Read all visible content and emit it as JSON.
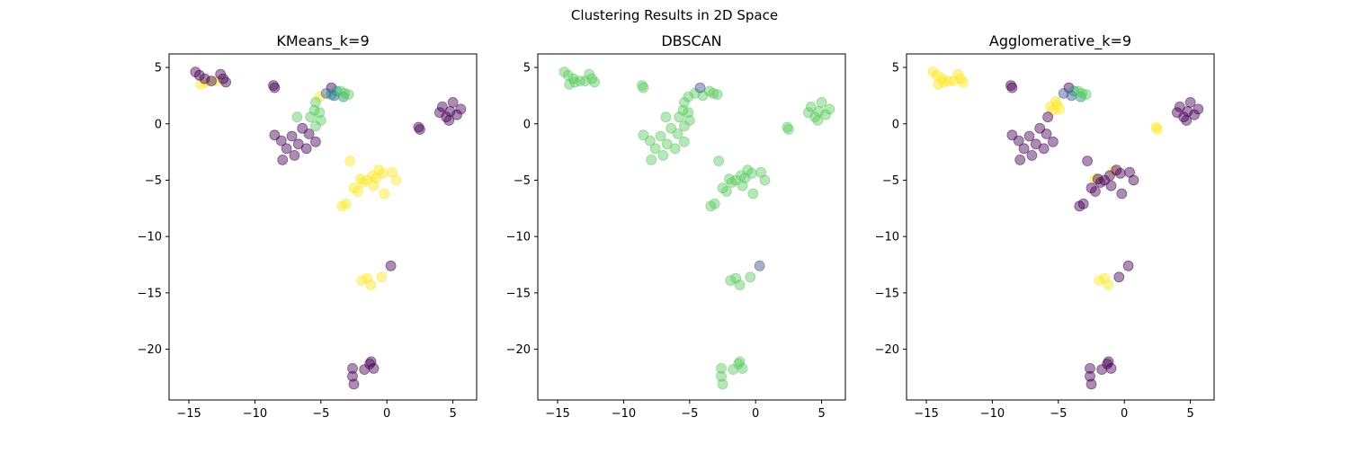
{
  "figure": {
    "suptitle": "Clustering Results in 2D Space"
  },
  "palette": {
    "dark": "#440154",
    "slate": "#3b528b",
    "teal": "#21918c",
    "green": "#5ec962",
    "yellow": "#fde725"
  },
  "chart_data": [
    {
      "type": "scatter",
      "title": "KMeans_k=9",
      "xlim": [
        -16.5,
        6.8
      ],
      "ylim": [
        -24.5,
        6.2
      ],
      "xticks": [
        -15,
        -10,
        -5,
        0,
        5
      ],
      "yticks": [
        5,
        0,
        -5,
        -10,
        -15,
        -20
      ],
      "groups": [
        {
          "color": "#fde725",
          "points": [
            [
              -3.1,
              -7.1
            ],
            [
              -2.5,
              -5.7
            ],
            [
              -1.8,
              -5.2
            ],
            [
              -1.1,
              -4.6
            ],
            [
              -0.6,
              -4.1
            ],
            [
              0.4,
              -4.3
            ],
            [
              0.7,
              -5.0
            ],
            [
              -2.8,
              -3.3
            ],
            [
              -2.0,
              -4.9
            ],
            [
              -1.5,
              -5.0
            ],
            [
              -0.8,
              -4.8
            ],
            [
              -0.3,
              -4.4
            ],
            [
              -2.2,
              -6.0
            ],
            [
              -1.0,
              -5.5
            ],
            [
              -0.2,
              -6.2
            ],
            [
              -3.4,
              -7.3
            ],
            [
              -1.5,
              -13.7
            ],
            [
              -1.2,
              -14.3
            ],
            [
              -1.9,
              -13.9
            ],
            [
              -0.4,
              -13.6
            ],
            [
              -14.1,
              3.5
            ],
            [
              -13.7,
              3.7
            ],
            [
              -12.9,
              3.8
            ],
            [
              -5.1,
              2.4
            ]
          ]
        },
        {
          "color": "#440154",
          "points": [
            [
              -14.5,
              4.6
            ],
            [
              -14.2,
              4.3
            ],
            [
              -13.8,
              4.0
            ],
            [
              -13.3,
              3.8
            ],
            [
              -12.6,
              4.4
            ],
            [
              -12.2,
              3.7
            ],
            [
              -12.4,
              4.0
            ],
            [
              4.0,
              1.0
            ],
            [
              4.5,
              0.6
            ],
            [
              4.8,
              1.1
            ],
            [
              5.3,
              0.8
            ],
            [
              5.6,
              1.3
            ],
            [
              4.2,
              1.5
            ],
            [
              5.0,
              1.9
            ],
            [
              4.7,
              0.3
            ],
            [
              -8.5,
              -1.0
            ],
            [
              -8.0,
              -1.5
            ],
            [
              -7.6,
              -2.2
            ],
            [
              -7.2,
              -1.1
            ],
            [
              -6.7,
              -1.8
            ],
            [
              -6.1,
              -2.2
            ],
            [
              -5.4,
              -1.6
            ],
            [
              -5.9,
              -0.9
            ],
            [
              -7.9,
              -3.2
            ],
            [
              -7.0,
              -2.8
            ],
            [
              -6.4,
              -0.4
            ],
            [
              -8.6,
              3.4
            ],
            [
              -8.5,
              3.2
            ],
            [
              2.4,
              -0.3
            ],
            [
              2.5,
              -0.5
            ],
            [
              -4.2,
              3.2
            ],
            [
              0.3,
              -12.6
            ],
            [
              -2.6,
              -21.7
            ],
            [
              -2.6,
              -22.4
            ],
            [
              -2.5,
              -23.1
            ],
            [
              -1.3,
              -21.3
            ],
            [
              -1.0,
              -21.7
            ],
            [
              -1.7,
              -21.8
            ],
            [
              -1.2,
              -21.1
            ]
          ]
        },
        {
          "color": "#3b528b",
          "points": [
            [
              -4.6,
              2.7
            ],
            [
              -4.0,
              2.5
            ]
          ]
        },
        {
          "color": "#21918c",
          "points": [
            [
              -3.3,
              2.4
            ],
            [
              -3.8,
              2.9
            ],
            [
              -4.2,
              2.6
            ]
          ]
        },
        {
          "color": "#5ec962",
          "points": [
            [
              -5.5,
              1.2
            ],
            [
              -5.4,
              1.9
            ],
            [
              -5.1,
              1.0
            ],
            [
              -5.8,
              0.6
            ],
            [
              -5.0,
              0.3
            ],
            [
              -2.9,
              2.6
            ],
            [
              -3.2,
              2.7
            ],
            [
              -3.5,
              2.9
            ],
            [
              -6.8,
              0.6
            ],
            [
              -5.4,
              -0.2
            ]
          ]
        }
      ]
    },
    {
      "type": "scatter",
      "title": "DBSCAN",
      "xlim": [
        -16.5,
        6.8
      ],
      "ylim": [
        -24.5,
        6.2
      ],
      "xticks": [
        -15,
        -10,
        -5,
        0,
        5
      ],
      "yticks": [
        5,
        0,
        -5,
        -10,
        -15,
        -20
      ],
      "groups": [
        {
          "color": "#5ec962",
          "points": [
            [
              -14.5,
              4.6
            ],
            [
              -14.2,
              4.3
            ],
            [
              -13.8,
              4.0
            ],
            [
              -13.3,
              3.8
            ],
            [
              -12.6,
              4.4
            ],
            [
              -12.2,
              3.7
            ],
            [
              -12.4,
              4.0
            ],
            [
              -14.1,
              3.5
            ],
            [
              -13.7,
              3.7
            ],
            [
              -12.9,
              3.8
            ],
            [
              4.0,
              1.0
            ],
            [
              4.5,
              0.6
            ],
            [
              4.8,
              1.1
            ],
            [
              5.3,
              0.8
            ],
            [
              5.6,
              1.3
            ],
            [
              4.2,
              1.5
            ],
            [
              5.0,
              1.9
            ],
            [
              4.7,
              0.3
            ],
            [
              -8.5,
              -1.0
            ],
            [
              -8.0,
              -1.5
            ],
            [
              -7.6,
              -2.2
            ],
            [
              -7.2,
              -1.1
            ],
            [
              -6.7,
              -1.8
            ],
            [
              -6.1,
              -2.2
            ],
            [
              -5.4,
              -1.6
            ],
            [
              -5.9,
              -0.9
            ],
            [
              -7.9,
              -3.2
            ],
            [
              -7.0,
              -2.8
            ],
            [
              -6.4,
              -0.4
            ],
            [
              -8.6,
              3.4
            ],
            [
              -8.5,
              3.2
            ],
            [
              2.4,
              -0.3
            ],
            [
              2.5,
              -0.5
            ],
            [
              -5.5,
              1.2
            ],
            [
              -5.4,
              1.9
            ],
            [
              -5.1,
              1.0
            ],
            [
              -5.8,
              0.6
            ],
            [
              -5.0,
              0.3
            ],
            [
              -2.9,
              2.6
            ],
            [
              -3.2,
              2.7
            ],
            [
              -3.5,
              2.9
            ],
            [
              -6.8,
              0.6
            ],
            [
              -5.4,
              -0.2
            ],
            [
              -3.1,
              -7.1
            ],
            [
              -2.5,
              -5.7
            ],
            [
              -1.8,
              -5.2
            ],
            [
              -1.1,
              -4.6
            ],
            [
              -0.6,
              -4.1
            ],
            [
              0.4,
              -4.3
            ],
            [
              0.7,
              -5.0
            ],
            [
              -2.8,
              -3.3
            ],
            [
              -2.0,
              -4.9
            ],
            [
              -1.5,
              -5.0
            ],
            [
              -0.8,
              -4.8
            ],
            [
              -0.3,
              -4.4
            ],
            [
              -2.2,
              -6.0
            ],
            [
              -1.0,
              -5.5
            ],
            [
              -0.2,
              -6.2
            ],
            [
              -3.4,
              -7.3
            ],
            [
              -1.5,
              -13.7
            ],
            [
              -1.2,
              -14.3
            ],
            [
              -1.9,
              -13.9
            ],
            [
              -0.4,
              -13.6
            ],
            [
              -2.6,
              -21.7
            ],
            [
              -2.6,
              -22.4
            ],
            [
              -2.5,
              -23.1
            ],
            [
              -1.3,
              -21.3
            ],
            [
              -1.0,
              -21.7
            ],
            [
              -1.7,
              -21.8
            ],
            [
              -1.2,
              -21.1
            ],
            [
              -4.6,
              2.7
            ],
            [
              -4.0,
              2.5
            ],
            [
              -5.1,
              2.4
            ]
          ]
        },
        {
          "color": "#3b528b",
          "points": [
            [
              0.3,
              -12.6
            ],
            [
              -4.2,
              3.2
            ]
          ]
        }
      ]
    },
    {
      "type": "scatter",
      "title": "Agglomerative_k=9",
      "xlim": [
        -16.5,
        6.8
      ],
      "ylim": [
        -24.5,
        6.2
      ],
      "xticks": [
        -15,
        -10,
        -5,
        0,
        5
      ],
      "yticks": [
        5,
        0,
        -5,
        -10,
        -15,
        -20
      ],
      "groups": [
        {
          "color": "#fde725",
          "points": [
            [
              -14.5,
              4.6
            ],
            [
              -14.2,
              4.3
            ],
            [
              -13.8,
              4.0
            ],
            [
              -13.3,
              3.8
            ],
            [
              -12.6,
              4.4
            ],
            [
              -12.2,
              3.7
            ],
            [
              -12.4,
              4.0
            ],
            [
              -14.1,
              3.5
            ],
            [
              -13.7,
              3.7
            ],
            [
              -12.9,
              3.8
            ],
            [
              -5.4,
              1.2
            ],
            [
              -5.1,
              1.7
            ],
            [
              -5.6,
              1.5
            ],
            [
              -4.9,
              1.3
            ],
            [
              -5.2,
              2.0
            ],
            [
              2.4,
              -0.3
            ],
            [
              2.5,
              -0.5
            ],
            [
              -2.2,
              -4.9
            ],
            [
              -0.8,
              -4.2
            ],
            [
              -1.5,
              -13.7
            ],
            [
              -1.2,
              -14.3
            ],
            [
              -1.9,
              -13.9
            ]
          ]
        },
        {
          "color": "#440154",
          "points": [
            [
              4.0,
              1.0
            ],
            [
              4.5,
              0.6
            ],
            [
              4.8,
              1.1
            ],
            [
              5.3,
              0.8
            ],
            [
              5.6,
              1.3
            ],
            [
              4.2,
              1.5
            ],
            [
              5.0,
              1.9
            ],
            [
              4.7,
              0.3
            ],
            [
              -8.5,
              -1.0
            ],
            [
              -8.0,
              -1.5
            ],
            [
              -7.6,
              -2.2
            ],
            [
              -7.2,
              -1.1
            ],
            [
              -6.7,
              -1.8
            ],
            [
              -6.1,
              -2.2
            ],
            [
              -5.4,
              -1.6
            ],
            [
              -5.9,
              -0.9
            ],
            [
              -7.9,
              -3.2
            ],
            [
              -7.0,
              -2.8
            ],
            [
              -6.4,
              -0.4
            ],
            [
              -8.6,
              3.4
            ],
            [
              -8.5,
              3.2
            ],
            [
              -3.1,
              -7.1
            ],
            [
              -2.5,
              -5.7
            ],
            [
              -1.8,
              -5.2
            ],
            [
              -1.1,
              -4.6
            ],
            [
              -0.6,
              -4.1
            ],
            [
              0.4,
              -4.3
            ],
            [
              0.7,
              -5.0
            ],
            [
              -2.8,
              -3.3
            ],
            [
              -2.0,
              -4.9
            ],
            [
              -1.5,
              -5.0
            ],
            [
              -0.3,
              -4.4
            ],
            [
              -2.2,
              -6.0
            ],
            [
              -1.0,
              -5.5
            ],
            [
              -0.2,
              -6.2
            ],
            [
              -3.4,
              -7.3
            ],
            [
              -0.4,
              -13.6
            ],
            [
              0.3,
              -12.6
            ],
            [
              -2.6,
              -21.7
            ],
            [
              -2.6,
              -22.4
            ],
            [
              -2.5,
              -23.1
            ],
            [
              -1.3,
              -21.3
            ],
            [
              -1.0,
              -21.7
            ],
            [
              -1.7,
              -21.8
            ],
            [
              -1.2,
              -21.1
            ],
            [
              -4.2,
              3.2
            ],
            [
              -5.8,
              0.6
            ]
          ]
        },
        {
          "color": "#3b528b",
          "points": [
            [
              -4.6,
              2.7
            ],
            [
              -4.0,
              2.5
            ]
          ]
        },
        {
          "color": "#21918c",
          "points": [
            [
              -3.3,
              2.4
            ],
            [
              -3.8,
              2.9
            ]
          ]
        },
        {
          "color": "#5ec962",
          "points": [
            [
              -2.9,
              2.6
            ],
            [
              -3.2,
              2.7
            ],
            [
              -3.5,
              2.9
            ]
          ]
        }
      ]
    }
  ]
}
